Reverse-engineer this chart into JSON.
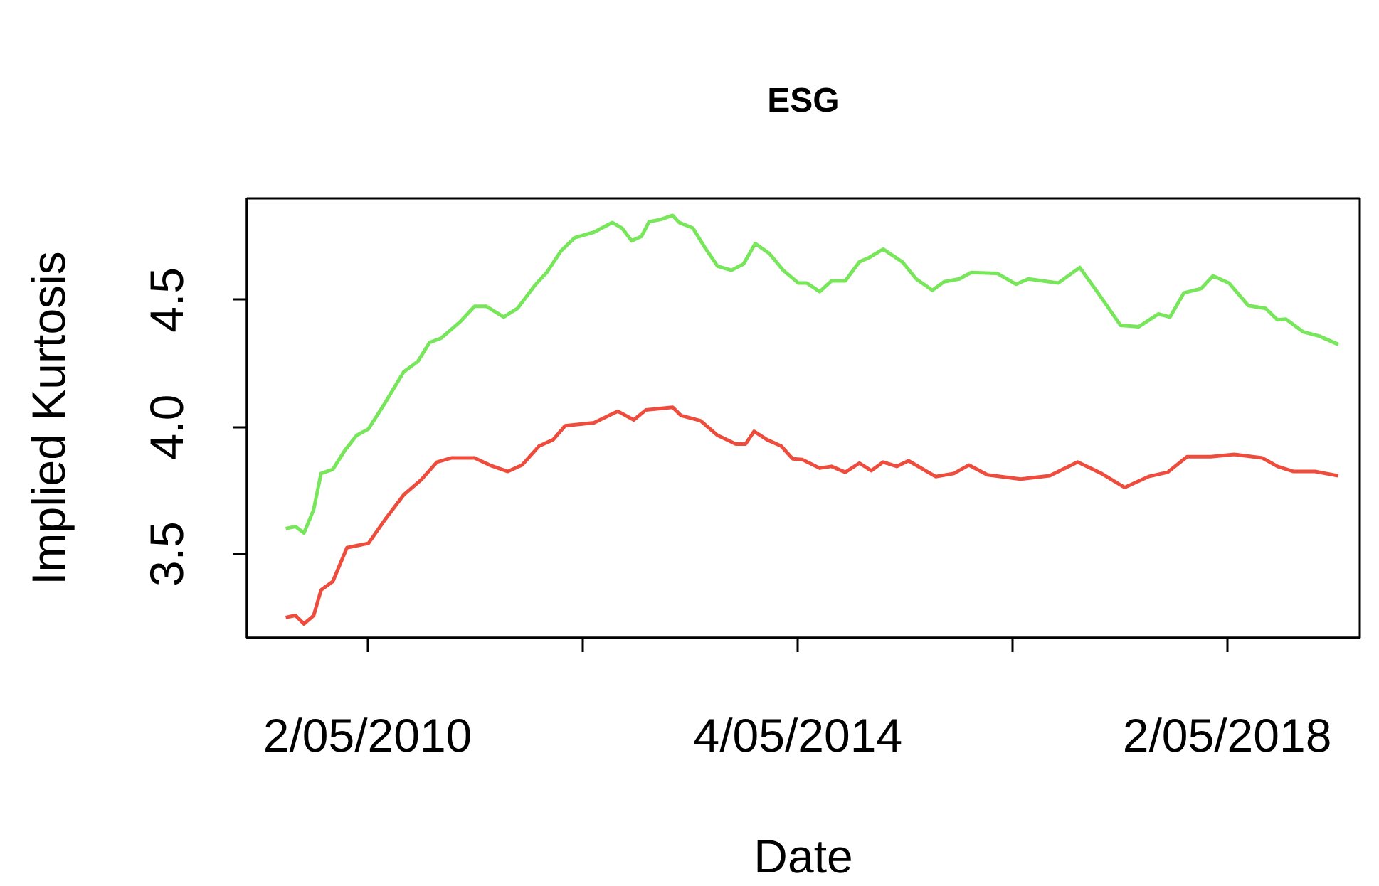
{
  "chart_data": {
    "type": "line",
    "title": "ESG",
    "xlabel": "Date",
    "ylabel": "Implied Kurtosis",
    "xlim": [
      "2009-03-18",
      "2019-07-27"
    ],
    "ylim": [
      3.17,
      4.9
    ],
    "xticks": [
      {
        "value": "2010-05-02",
        "label": "2/05/2010"
      },
      {
        "value": "2012-05-03",
        "label": null
      },
      {
        "value": "2014-05-04",
        "label": "4/05/2014"
      },
      {
        "value": "2016-05-03",
        "label": null
      },
      {
        "value": "2018-05-02",
        "label": "2/05/2018"
      }
    ],
    "yticks": [
      {
        "value": 3.5,
        "label": "3.5"
      },
      {
        "value": 4.0,
        "label": "4.0"
      },
      {
        "value": 4.5,
        "label": "4.5"
      }
    ],
    "grid": false,
    "marker": "none",
    "line_style": "solid",
    "series": [
      {
        "color": "#77e65a",
        "x": [
          "2009-07-28",
          "2009-08-30",
          "2009-09-28",
          "2009-10-31",
          "2009-11-25",
          "2010-01-04",
          "2010-02-14",
          "2010-03-26",
          "2010-05-05",
          "2010-06-29",
          "2010-09-02",
          "2010-10-20",
          "2010-11-29",
          "2011-01-08",
          "2011-03-15",
          "2011-05-01",
          "2011-06-10",
          "2011-08-08",
          "2011-09-24",
          "2011-11-22",
          "2012-01-01",
          "2012-02-18",
          "2012-04-05",
          "2012-06-10",
          "2012-08-11",
          "2012-09-13",
          "2012-10-16",
          "2012-11-18",
          "2012-12-14",
          "2013-01-23",
          "2013-03-04",
          "2013-03-26",
          "2013-05-12",
          "2013-06-21",
          "2013-08-04",
          "2013-09-20",
          "2013-10-31",
          "2013-12-10",
          "2014-01-27",
          "2014-03-15",
          "2014-05-05",
          "2014-06-03",
          "2014-07-17",
          "2014-08-26",
          "2014-10-12",
          "2014-11-29",
          "2015-01-01",
          "2015-02-18",
          "2015-04-24",
          "2015-06-10",
          "2015-08-04",
          "2015-09-13",
          "2015-11-04",
          "2015-12-14",
          "2016-03-11",
          "2016-05-15",
          "2016-06-25",
          "2016-10-05",
          "2016-12-17",
          "2017-02-14",
          "2017-05-05",
          "2017-07-06",
          "2017-09-10",
          "2017-10-20",
          "2017-12-06",
          "2018-02-03",
          "2018-03-15",
          "2018-05-08",
          "2018-07-13",
          "2018-09-10",
          "2018-10-20",
          "2018-11-18",
          "2019-01-15",
          "2019-03-11",
          "2019-05-15"
        ],
        "values": [
          3.6,
          3.608,
          3.583,
          3.675,
          3.817,
          3.833,
          3.908,
          3.967,
          3.992,
          4.092,
          4.217,
          4.258,
          4.333,
          4.35,
          4.417,
          4.475,
          4.475,
          4.433,
          4.467,
          4.558,
          4.608,
          4.692,
          4.745,
          4.767,
          4.805,
          4.783,
          4.733,
          4.75,
          4.808,
          4.817,
          4.833,
          4.805,
          4.783,
          4.708,
          4.633,
          4.617,
          4.642,
          4.722,
          4.683,
          4.617,
          4.567,
          4.567,
          4.533,
          4.575,
          4.575,
          4.65,
          4.667,
          4.7,
          4.65,
          4.583,
          4.538,
          4.572,
          4.583,
          4.608,
          4.605,
          4.562,
          4.583,
          4.567,
          4.628,
          4.533,
          4.4,
          4.395,
          4.445,
          4.433,
          4.528,
          4.545,
          4.595,
          4.567,
          4.478,
          4.467,
          4.422,
          4.425,
          4.375,
          4.358,
          4.325
        ]
      },
      {
        "color": "#ee4c3c",
        "x": [
          "2009-07-28",
          "2009-08-30",
          "2009-09-28",
          "2009-10-31",
          "2009-11-25",
          "2010-01-04",
          "2010-02-21",
          "2010-05-05",
          "2010-06-29",
          "2010-09-02",
          "2010-10-31",
          "2010-12-24",
          "2011-02-10",
          "2011-05-01",
          "2011-06-21",
          "2011-08-22",
          "2011-10-09",
          "2011-12-06",
          "2012-01-23",
          "2012-03-04",
          "2012-06-10",
          "2012-08-30",
          "2012-10-23",
          "2012-12-03",
          "2013-03-04",
          "2013-04-02",
          "2013-06-07",
          "2013-08-04",
          "2013-10-05",
          "2013-11-07",
          "2013-12-06",
          "2014-01-19",
          "2014-03-08",
          "2014-04-16",
          "2014-05-19",
          "2014-07-17",
          "2014-08-26",
          "2014-10-12",
          "2014-11-29",
          "2015-01-08",
          "2015-02-18",
          "2015-04-05",
          "2015-05-15",
          "2015-08-15",
          "2015-10-16",
          "2015-12-06",
          "2016-02-07",
          "2016-05-30",
          "2016-09-06",
          "2016-12-10",
          "2017-03-01",
          "2017-05-19",
          "2017-08-08",
          "2017-10-12",
          "2017-12-17",
          "2018-03-08",
          "2018-05-26",
          "2018-08-30",
          "2018-10-20",
          "2018-12-14",
          "2019-02-25",
          "2019-05-15"
        ],
        "values": [
          3.25,
          3.258,
          3.225,
          3.258,
          3.358,
          3.392,
          3.525,
          3.542,
          3.633,
          3.733,
          3.792,
          3.862,
          3.878,
          3.878,
          3.85,
          3.825,
          3.85,
          3.925,
          3.95,
          4.005,
          4.017,
          4.062,
          4.028,
          4.067,
          4.078,
          4.045,
          4.025,
          3.967,
          3.933,
          3.933,
          3.983,
          3.95,
          3.925,
          3.875,
          3.872,
          3.838,
          3.845,
          3.822,
          3.858,
          3.828,
          3.862,
          3.845,
          3.867,
          3.805,
          3.817,
          3.85,
          3.812,
          3.795,
          3.808,
          3.862,
          3.817,
          3.762,
          3.805,
          3.822,
          3.883,
          3.883,
          3.892,
          3.878,
          3.845,
          3.825,
          3.825,
          3.808
        ]
      }
    ]
  }
}
